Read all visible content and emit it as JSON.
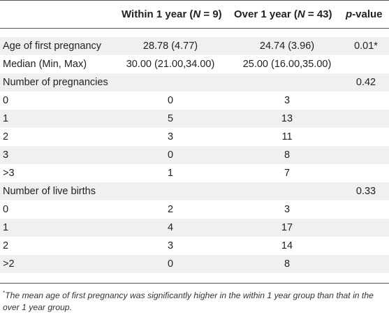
{
  "header": {
    "col_within_prefix": "Within 1 year (",
    "col_within_n": "N",
    "col_within_suffix": " = 9)",
    "col_over_prefix": "Over 1 year (",
    "col_over_n": "N",
    "col_over_suffix": " = 43)",
    "col_p_italic": "p",
    "col_p_suffix": "-value"
  },
  "rows": [
    {
      "label": "Age of first pregnancy",
      "within": "28.78 (4.77)",
      "over": "24.74 (3.96)",
      "p": "0.01*"
    },
    {
      "label": "Median (Min, Max)",
      "within": "30.00 (21.00,34.00)",
      "over": "25.00 (16.00,35.00)",
      "p": ""
    },
    {
      "label": "Number of pregnancies",
      "within": "",
      "over": "",
      "p": "0.42"
    },
    {
      "label": "0",
      "within": "0",
      "over": "3",
      "p": ""
    },
    {
      "label": "1",
      "within": "5",
      "over": "13",
      "p": ""
    },
    {
      "label": "2",
      "within": "3",
      "over": "11",
      "p": ""
    },
    {
      "label": "3",
      "within": "0",
      "over": "8",
      "p": ""
    },
    {
      "label": ">3",
      "within": "1",
      "over": "7",
      "p": ""
    },
    {
      "label": "Number of live births",
      "within": "",
      "over": "",
      "p": "0.33"
    },
    {
      "label": "0",
      "within": "2",
      "over": "3",
      "p": ""
    },
    {
      "label": "1",
      "within": "4",
      "over": "17",
      "p": ""
    },
    {
      "label": "2",
      "within": "3",
      "over": "14",
      "p": ""
    },
    {
      "label": ">2",
      "within": "0",
      "over": "8",
      "p": ""
    }
  ],
  "footnote": {
    "marker": "*",
    "text": "The mean age of first pregnancy was significantly higher in the within 1 year group than that in the over 1 year group."
  },
  "colors": {
    "rule": "#555555",
    "stripe": "#f0f0f0",
    "text": "#222222"
  }
}
